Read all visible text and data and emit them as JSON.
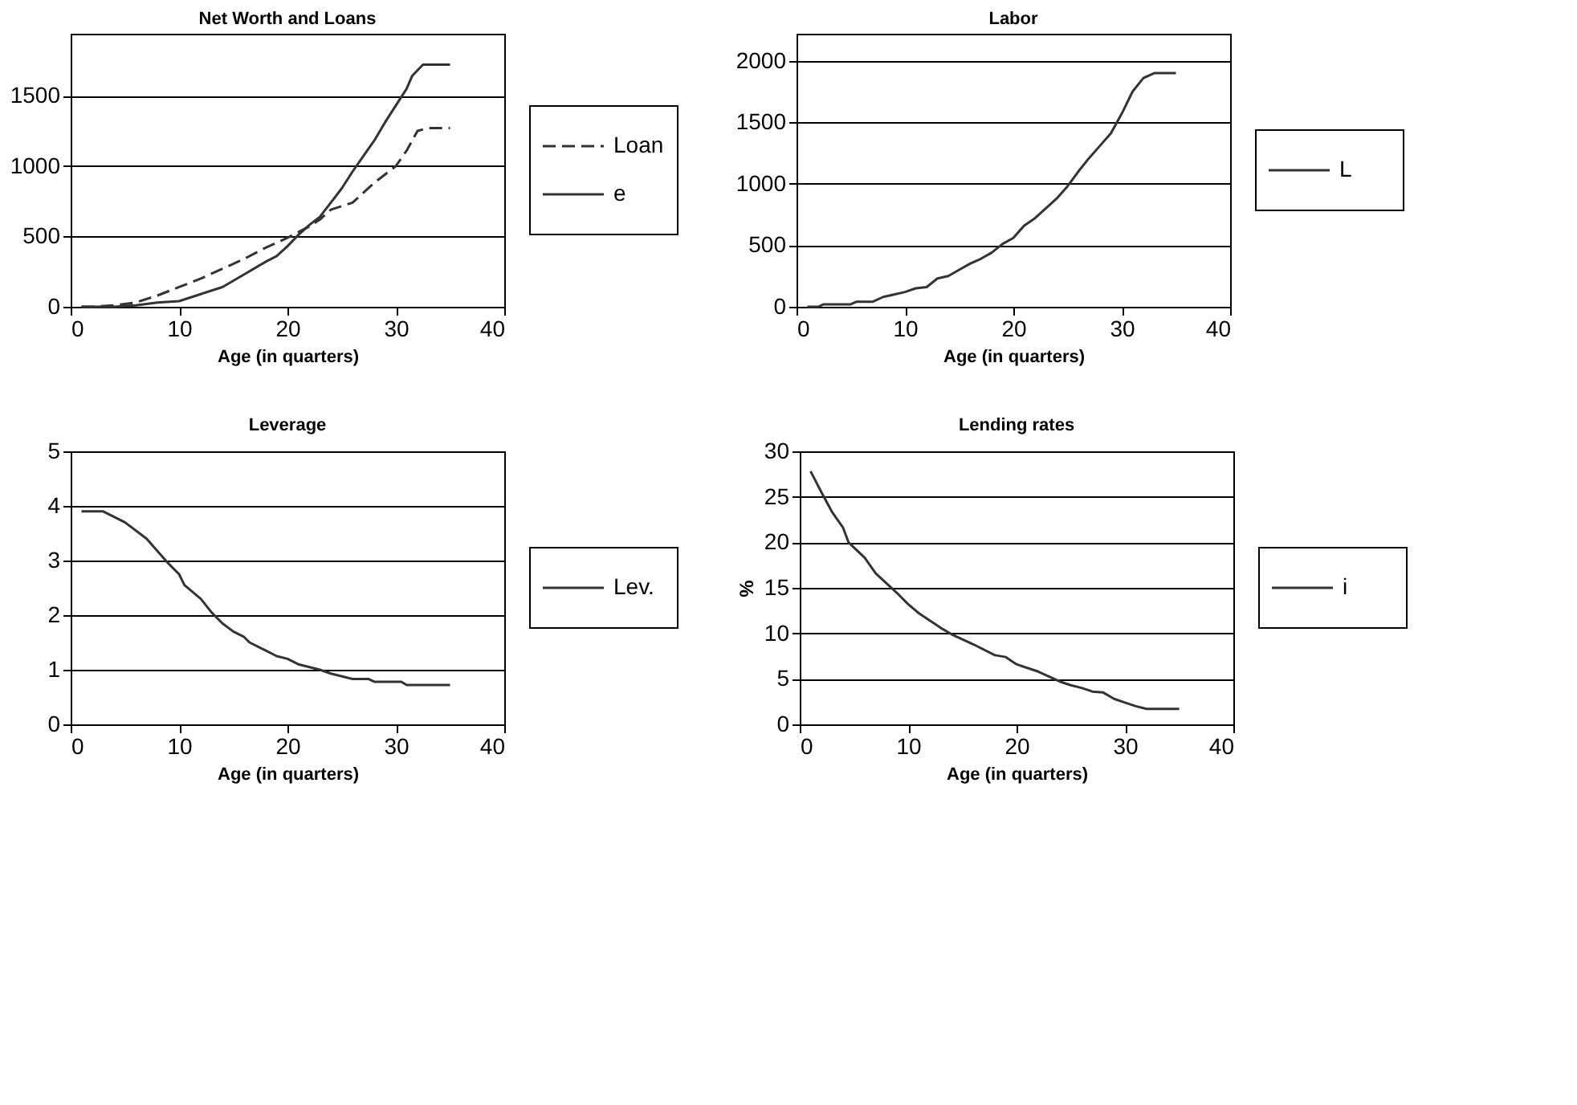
{
  "chart_data": [
    {
      "type": "line",
      "title": "Net Worth and Loans",
      "xlabel": "Age (in quarters)",
      "xlim": [
        0,
        40
      ],
      "xticks": [
        0,
        10,
        20,
        30,
        40
      ],
      "ylim": [
        0,
        1940
      ],
      "yticks": [
        0,
        500,
        1000,
        1500
      ],
      "grid": "y",
      "legend": "right",
      "series": [
        {
          "name": "Loan",
          "color": "#333333",
          "line_style": "dashed",
          "x": [
            1,
            2,
            4,
            5,
            6,
            8,
            10,
            12,
            14,
            16,
            18,
            20,
            22,
            23,
            24,
            26,
            28,
            30,
            31,
            32,
            33,
            35
          ],
          "values": [
            0,
            0,
            10,
            20,
            30,
            80,
            140,
            200,
            270,
            340,
            420,
            490,
            570,
            620,
            690,
            740,
            880,
            1000,
            1110,
            1250,
            1270,
            1270
          ]
        },
        {
          "name": "e",
          "color": "#333333",
          "line_style": "solid",
          "x": [
            1,
            4,
            6,
            8,
            10,
            12,
            14,
            16,
            18,
            19,
            20,
            21,
            22,
            23,
            24,
            25,
            26,
            27,
            28,
            29,
            30,
            31,
            31.5,
            32.5,
            35
          ],
          "values": [
            0,
            0,
            10,
            30,
            40,
            90,
            140,
            230,
            320,
            360,
            430,
            510,
            580,
            640,
            740,
            840,
            960,
            1070,
            1180,
            1310,
            1430,
            1550,
            1640,
            1720,
            1720
          ]
        }
      ]
    },
    {
      "type": "line",
      "title": "Labor",
      "xlabel": "Age (in quarters)",
      "xlim": [
        0,
        40
      ],
      "xticks": [
        0,
        10,
        20,
        30,
        40
      ],
      "ylim": [
        0,
        2220
      ],
      "yticks": [
        0,
        500,
        1000,
        1500,
        2000
      ],
      "grid": "y",
      "legend": "right",
      "series": [
        {
          "name": "L",
          "color": "#333333",
          "line_style": "solid",
          "x": [
            1,
            2,
            2.5,
            5,
            5.5,
            7,
            8,
            9,
            10,
            11,
            12,
            13,
            14,
            15,
            16,
            17,
            18,
            19,
            20,
            21,
            22,
            23,
            24,
            25,
            26,
            27,
            28,
            29,
            30,
            31,
            32,
            33,
            35
          ],
          "values": [
            0,
            0,
            20,
            20,
            40,
            40,
            80,
            100,
            120,
            150,
            160,
            230,
            250,
            300,
            350,
            390,
            440,
            510,
            560,
            660,
            720,
            800,
            880,
            980,
            1100,
            1210,
            1310,
            1410,
            1570,
            1750,
            1860,
            1900,
            1900
          ]
        }
      ]
    },
    {
      "type": "line",
      "title": "Leverage",
      "xlabel": "Age (in quarters)",
      "xlim": [
        0,
        40
      ],
      "xticks": [
        0,
        10,
        20,
        30,
        40
      ],
      "ylim": [
        0,
        5
      ],
      "yticks": [
        0,
        1,
        2,
        3,
        4,
        5
      ],
      "grid": "y",
      "legend": "right",
      "series": [
        {
          "name": "Lev.",
          "color": "#333333",
          "line_style": "solid",
          "x": [
            1,
            3,
            5,
            7,
            9,
            10,
            10.5,
            12,
            13,
            14,
            15,
            16,
            16.5,
            18,
            19,
            20,
            21,
            23,
            24,
            26,
            27.5,
            28,
            30.5,
            31,
            35
          ],
          "values": [
            3.9,
            3.9,
            3.7,
            3.4,
            2.95,
            2.75,
            2.55,
            2.3,
            2.05,
            1.85,
            1.7,
            1.6,
            1.5,
            1.35,
            1.25,
            1.2,
            1.1,
            1.0,
            0.93,
            0.83,
            0.83,
            0.78,
            0.78,
            0.72,
            0.72
          ]
        }
      ]
    },
    {
      "type": "line",
      "title": "Lending rates",
      "xlabel": "Age (in quarters)",
      "ylabel": "%",
      "xlim": [
        0,
        40
      ],
      "xticks": [
        0,
        10,
        20,
        30,
        40
      ],
      "ylim": [
        0,
        30
      ],
      "yticks": [
        0,
        5,
        10,
        15,
        20,
        25,
        30
      ],
      "grid": "y",
      "legend": "right",
      "series": [
        {
          "name": "i",
          "color": "#333333",
          "line_style": "solid",
          "x": [
            1,
            2,
            3,
            4,
            4.5,
            6,
            7,
            8,
            9,
            10,
            11,
            12,
            13,
            14,
            16,
            18,
            19,
            20,
            22,
            24,
            25,
            26,
            27,
            28,
            29,
            30,
            31,
            32,
            35
          ],
          "values": [
            27.8,
            25.5,
            23.3,
            21.6,
            20,
            18.3,
            16.6,
            15.5,
            14.4,
            13.2,
            12.2,
            11.4,
            10.6,
            9.9,
            8.8,
            7.6,
            7.4,
            6.6,
            5.8,
            4.7,
            4.3,
            4.0,
            3.6,
            3.5,
            2.8,
            2.4,
            2.0,
            1.7,
            1.7
          ]
        }
      ]
    }
  ]
}
